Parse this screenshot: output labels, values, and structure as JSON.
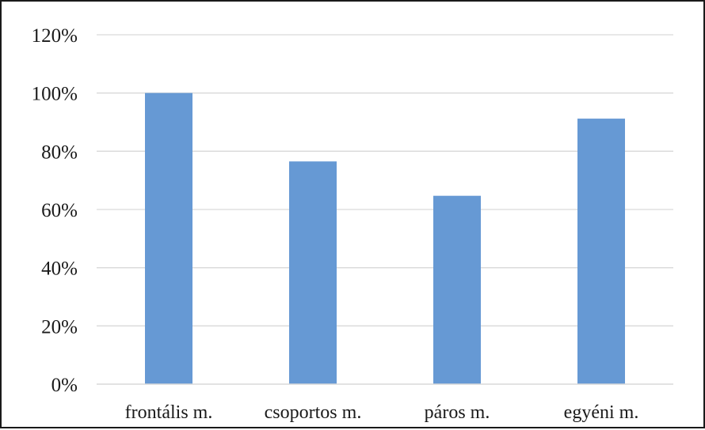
{
  "chart_data": {
    "type": "bar",
    "categories": [
      "frontális m.",
      "csoportos m.",
      "páros m.",
      "egyéni m."
    ],
    "values": [
      100,
      76.5,
      64.7,
      91.2
    ],
    "title": "",
    "xlabel": "",
    "ylabel": "",
    "ylim": [
      0,
      120
    ],
    "yticks": [
      0,
      20,
      40,
      60,
      80,
      100,
      120
    ],
    "ytick_labels": [
      "0%",
      "20%",
      "40%",
      "60%",
      "80%",
      "100%",
      "120%"
    ],
    "grid": "horizontal",
    "legend": "none",
    "bar_color": "#6699d4",
    "grid_color": "#d9d9d9",
    "axis_color": "#d9d9d9",
    "text_color": "#1a1a1a"
  }
}
